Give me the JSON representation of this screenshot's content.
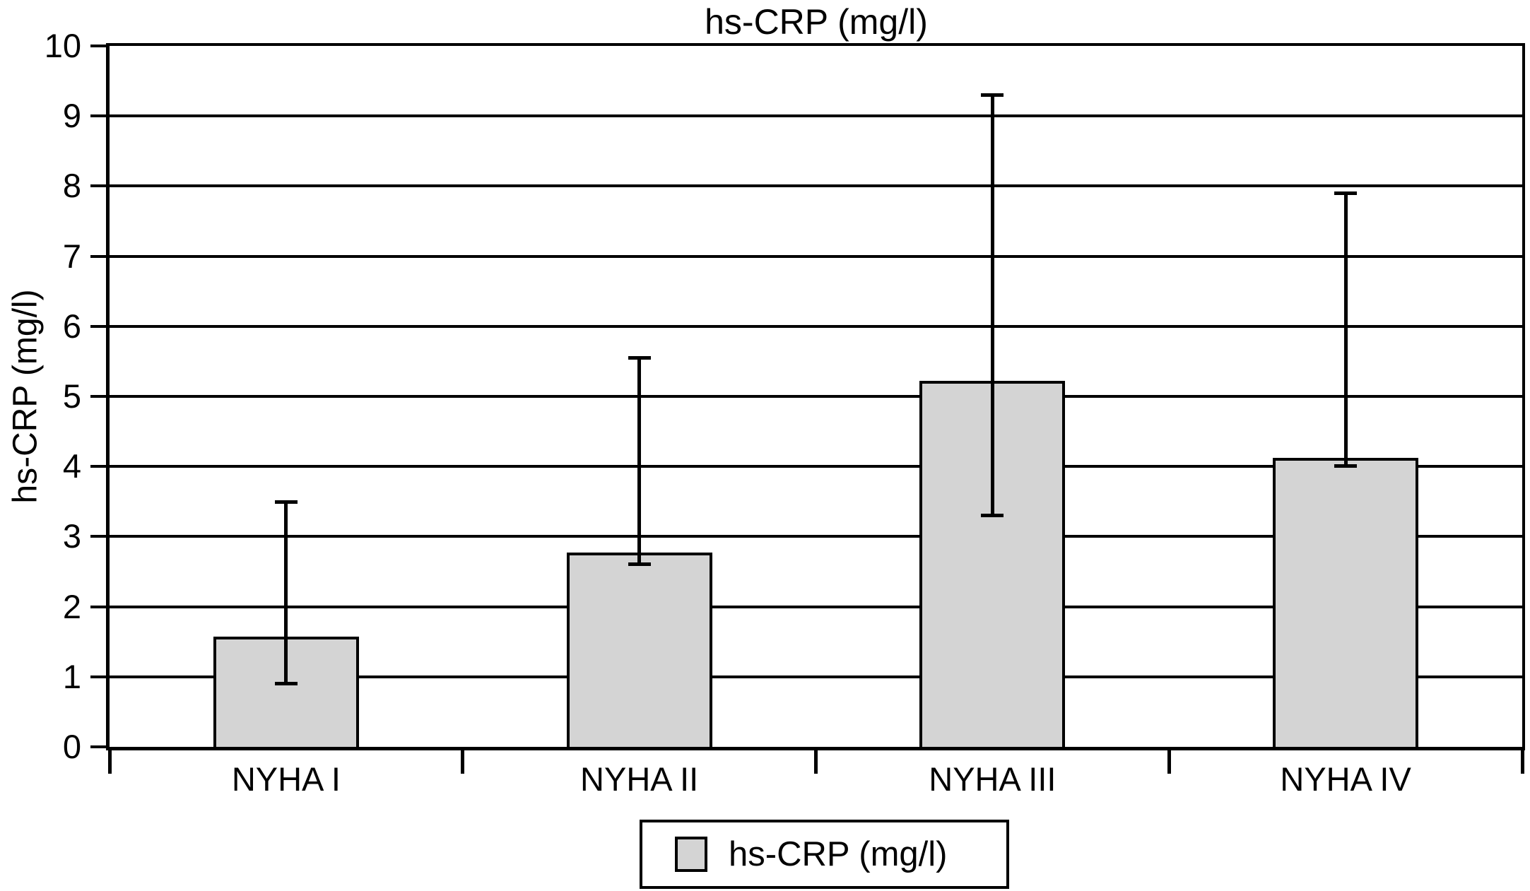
{
  "chart_data": {
    "type": "bar",
    "title": "hs-CRP (mg/l)",
    "xlabel": "",
    "ylabel": "hs-CRP (mg/l)",
    "categories": [
      "NYHA I",
      "NYHA II",
      "NYHA III",
      "NYHA IV"
    ],
    "series": [
      {
        "name": "hs-CRP (mg/l)",
        "values": [
          1.55,
          2.75,
          5.2,
          4.1
        ]
      }
    ],
    "error_bars": {
      "whisker_high": [
        3.5,
        5.55,
        9.3,
        7.9
      ],
      "whisker_low": [
        0.9,
        2.6,
        3.3,
        4.0
      ]
    },
    "ylim": [
      0,
      10
    ],
    "yticks": [
      0,
      1,
      2,
      3,
      4,
      5,
      6,
      7,
      8,
      9,
      10
    ],
    "grid": true,
    "legend_position": "bottom-center",
    "bar_color": "#d4d4d4",
    "line_color": "#000000",
    "background_color": "#ffffff"
  },
  "legend": {
    "label": "hs-CRP (mg/l)"
  }
}
